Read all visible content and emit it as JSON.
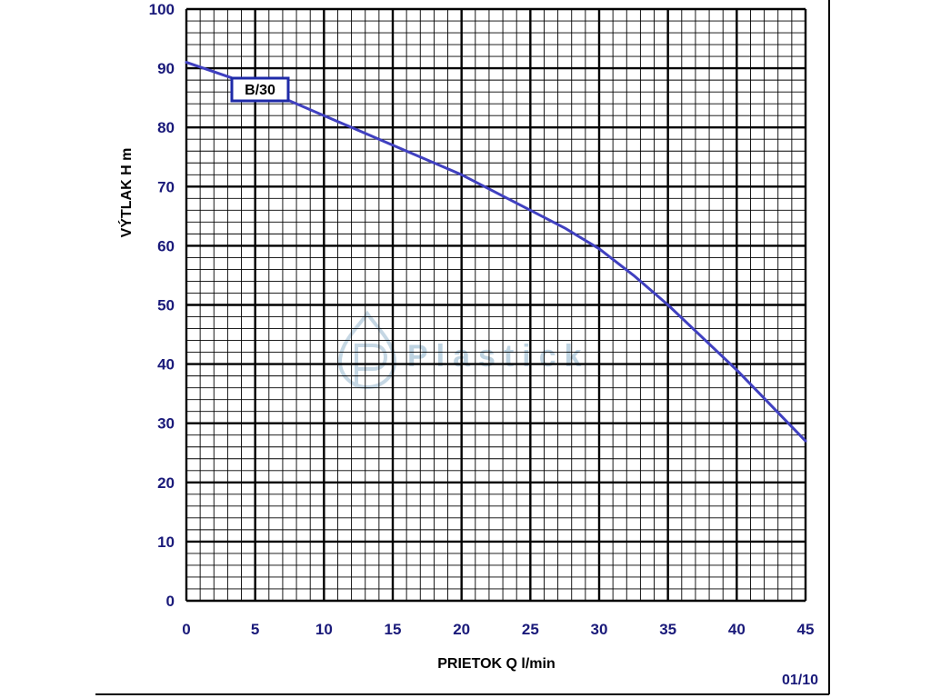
{
  "chart_data": {
    "type": "line",
    "xlabel": "PRIETOK  Q  l/min",
    "ylabel": "VÝTLAK  H  m",
    "xlim": [
      0,
      45
    ],
    "ylim": [
      0,
      100
    ],
    "x_ticks": [
      "0",
      "5",
      "10",
      "15",
      "20",
      "25",
      "30",
      "35",
      "40",
      "45"
    ],
    "y_ticks": [
      "0",
      "10",
      "20",
      "30",
      "40",
      "50",
      "60",
      "70",
      "80",
      "90",
      "100"
    ],
    "grid": true,
    "series": [
      {
        "name": "B/30",
        "x": [
          0,
          5,
          10,
          15,
          20,
          25,
          27.5,
          30,
          32.5,
          35,
          37.5,
          40,
          42.5,
          45
        ],
        "y": [
          91,
          87,
          82,
          77,
          72,
          66,
          63,
          59.5,
          55,
          50,
          44.5,
          39,
          33,
          27
        ]
      }
    ],
    "line_color": "#4040c0",
    "axis_text_color": "#1a1a7a"
  },
  "footer": {
    "code": "01/10"
  },
  "watermark": {
    "text": "Plastick"
  }
}
